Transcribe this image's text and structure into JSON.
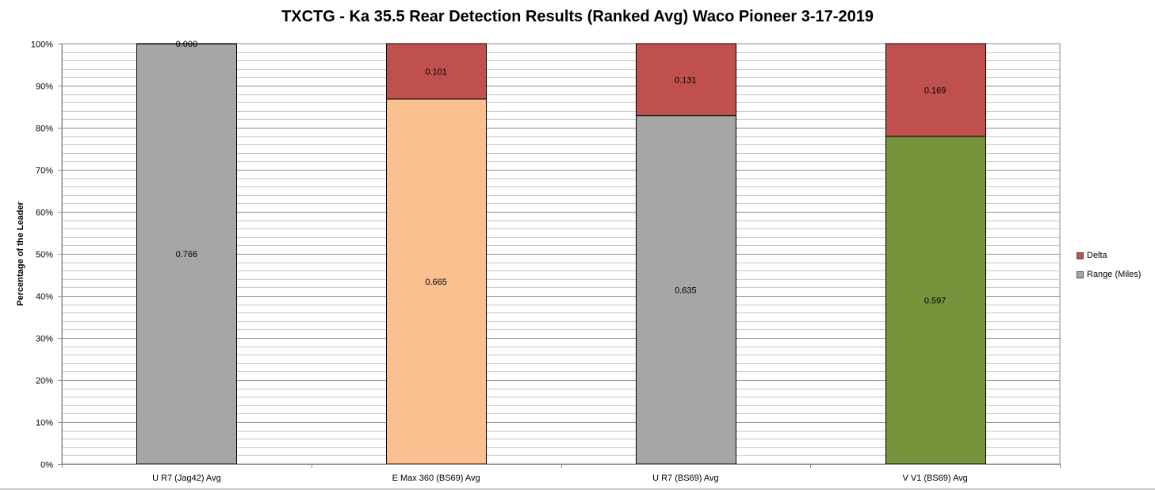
{
  "chart_data": {
    "type": "bar",
    "stacked": true,
    "title": "TXCTG - Ka 35.5 Rear Detection Results (Ranked Avg) Waco Pioneer 3-17-2019",
    "xlabel": "",
    "ylabel": "Percentage of the Leader",
    "ylim": [
      0,
      100
    ],
    "y_ticks": [
      "0%",
      "10%",
      "20%",
      "30%",
      "40%",
      "50%",
      "60%",
      "70%",
      "80%",
      "90%",
      "100%"
    ],
    "grid": true,
    "legend_position": "right",
    "categories": [
      "U R7 (Jag42) Avg",
      "E Max 360 (BS69) Avg",
      "U R7 (BS69) Avg",
      "V V1 (BS69) Avg"
    ],
    "series": [
      {
        "name": "Range (Miles)",
        "color": "#A6A6A6",
        "values": [
          0.766,
          0.665,
          0.635,
          0.597
        ],
        "labels": [
          "0.766",
          "0.665",
          "0.635",
          "0.597"
        ],
        "point_colors": [
          "#A6A6A6",
          "#FAC090",
          "#A6A6A6",
          "#77933C"
        ]
      },
      {
        "name": "Delta",
        "color": "#C0504D",
        "values": [
          0.0,
          0.101,
          0.131,
          0.169
        ],
        "labels": [
          "0.000",
          "0.101",
          "0.131",
          "0.169"
        ]
      }
    ]
  }
}
